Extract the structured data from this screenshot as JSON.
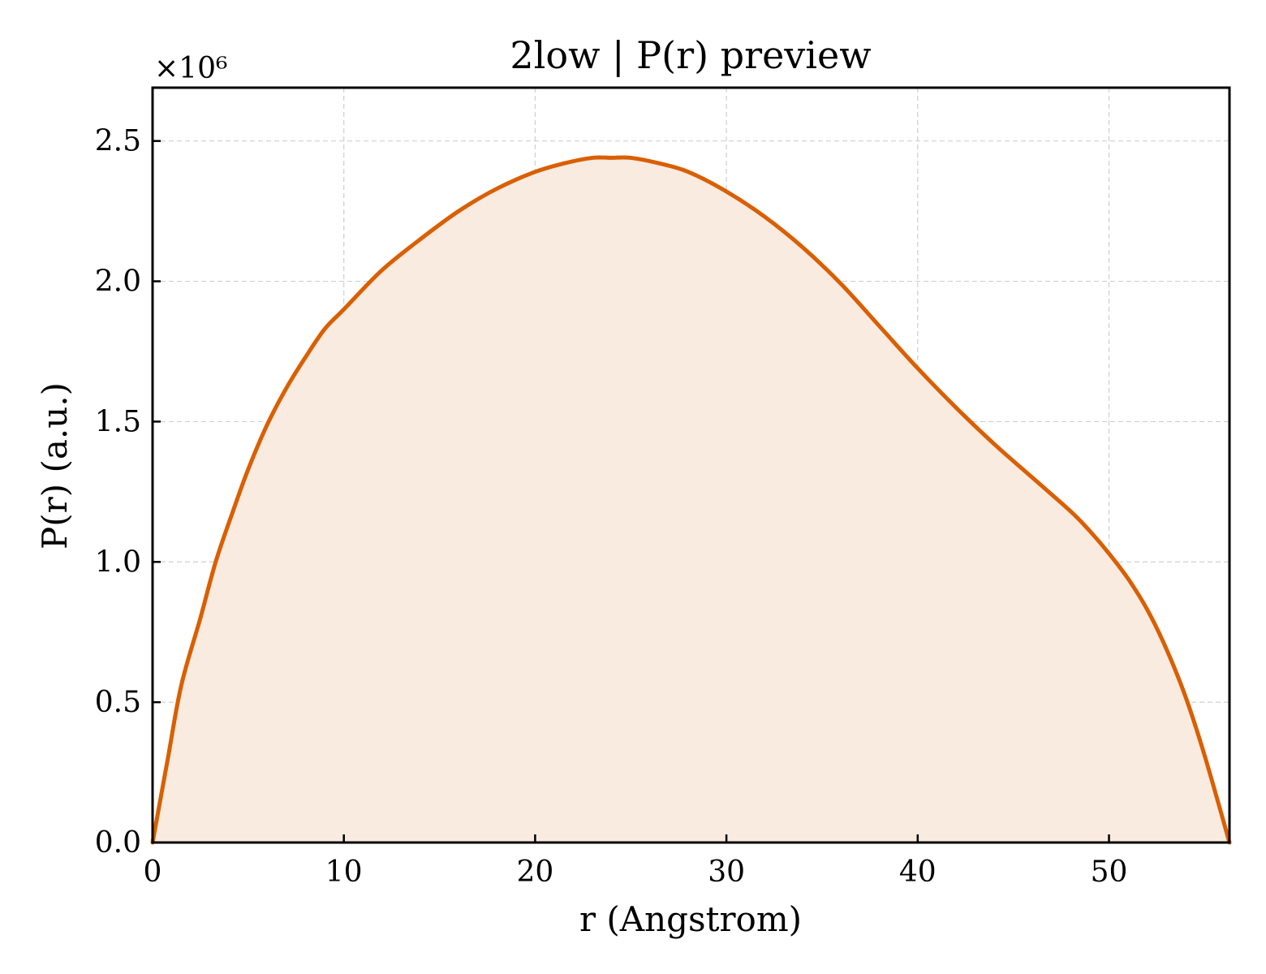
{
  "chart_data": {
    "type": "area",
    "title": "2low | P(r) preview",
    "xlabel": "r (Angstrom)",
    "ylabel": "P(r) (a.u.)",
    "y_scale_label": "×10⁶",
    "xlim": [
      0,
      56.3
    ],
    "ylim": [
      0,
      2.69
    ],
    "xticks": [
      0,
      10,
      20,
      30,
      40,
      50
    ],
    "yticks": [
      0.0,
      0.5,
      1.0,
      1.5,
      2.0,
      2.5
    ],
    "ytick_labels": [
      "0.0",
      "0.5",
      "1.0",
      "1.5",
      "2.0",
      "2.5"
    ],
    "grid": true,
    "line_color": "#d95f02",
    "fill_color": "#f9ebe0",
    "series": [
      {
        "x": [
          0,
          0.8,
          1.5,
          2.5,
          3.3,
          4.2,
          5.0,
          6.0,
          7.0,
          8.0,
          9.0,
          10.0,
          12.0,
          14.0,
          16.0,
          18.0,
          20.0,
          21.5,
          23.0,
          24.0,
          25.0,
          26.5,
          28.0,
          30.0,
          32.0,
          34.0,
          36.0,
          38.0,
          40.0,
          42.0,
          44.0,
          46.0,
          48.0,
          49.0,
          50.0,
          51.0,
          52.0,
          53.0,
          54.0,
          55.0,
          56.3
        ],
        "y": [
          0.0,
          0.3,
          0.56,
          0.8,
          1.0,
          1.18,
          1.33,
          1.49,
          1.62,
          1.73,
          1.83,
          1.9,
          2.04,
          2.15,
          2.25,
          2.33,
          2.39,
          2.42,
          2.44,
          2.44,
          2.44,
          2.42,
          2.39,
          2.32,
          2.23,
          2.12,
          1.99,
          1.84,
          1.69,
          1.55,
          1.42,
          1.3,
          1.18,
          1.11,
          1.03,
          0.94,
          0.83,
          0.69,
          0.52,
          0.31,
          0.0
        ]
      }
    ]
  }
}
